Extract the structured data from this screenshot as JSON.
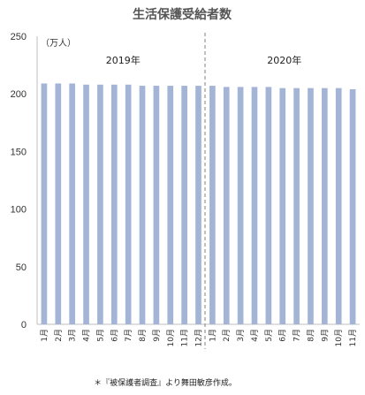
{
  "chart_data": {
    "type": "bar",
    "title": "生活保護受給者数",
    "unit_label": "（万人）",
    "note": "＊『被保護者調査』より舞田敏彦作成。",
    "ylim": [
      0,
      250
    ],
    "yticks": [
      0,
      50,
      100,
      150,
      200,
      250
    ],
    "grid": false,
    "color": "#a3b4d6",
    "groups": [
      {
        "label": "2019年",
        "categories": [
          "1月",
          "2月",
          "3月",
          "4月",
          "5月",
          "6月",
          "7月",
          "8月",
          "9月",
          "10月",
          "11月",
          "12月"
        ]
      },
      {
        "label": "2020年",
        "categories": [
          "1月",
          "2月",
          "3月",
          "4月",
          "5月",
          "6月",
          "7月",
          "8月",
          "9月",
          "10月",
          "11月"
        ]
      }
    ],
    "values": [
      209,
      209,
      209,
      208,
      208,
      208,
      208,
      207,
      207,
      207,
      207,
      207,
      207,
      206,
      206,
      206,
      206,
      205,
      205,
      205,
      205,
      205,
      204
    ]
  }
}
